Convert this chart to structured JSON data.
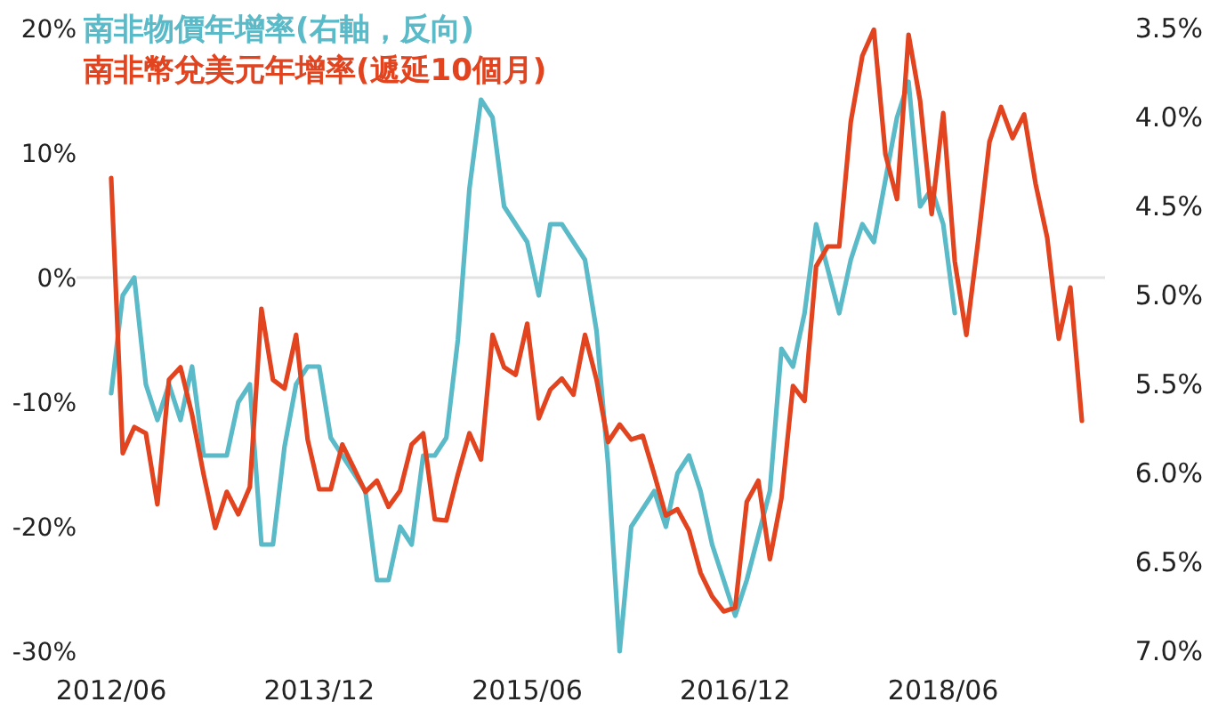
{
  "chart_data": {
    "type": "line",
    "xlim": [
      "2012-03",
      "2019-08"
    ],
    "xticks": [
      {
        "value": "2012-06",
        "label": "2012/06"
      },
      {
        "value": "2013-12",
        "label": "2013/12"
      },
      {
        "value": "2015-06",
        "label": "2015/06"
      },
      {
        "value": "2016-12",
        "label": "2016/12"
      },
      {
        "value": "2018-06",
        "label": "2018/06"
      }
    ],
    "ylim": [
      -30,
      20
    ],
    "yticks": [
      {
        "value": -30,
        "label": "-30%"
      },
      {
        "value": -20,
        "label": "-20%"
      },
      {
        "value": -10,
        "label": "-10%"
      },
      {
        "value": 0,
        "label": "0%"
      },
      {
        "value": 10,
        "label": "10%"
      },
      {
        "value": 20,
        "label": "20%"
      }
    ],
    "y2lim": [
      7.0,
      3.5
    ],
    "y2ticks": [
      {
        "value": 3.5,
        "label": "3.5%"
      },
      {
        "value": 4.0,
        "label": "4.0%"
      },
      {
        "value": 4.5,
        "label": "4.5%"
      },
      {
        "value": 5.0,
        "label": "5.0%"
      },
      {
        "value": 5.5,
        "label": "5.5%"
      },
      {
        "value": 6.0,
        "label": "6.0%"
      },
      {
        "value": 6.5,
        "label": "6.5%"
      },
      {
        "value": 7.0,
        "label": "7.0%"
      }
    ],
    "ref_lines": [
      {
        "axis": "y",
        "value": 0,
        "color": "#e3e3e3"
      }
    ],
    "grid": false,
    "x": [
      "2012-06",
      "2012-07",
      "2012-08",
      "2012-09",
      "2012-10",
      "2012-11",
      "2012-12",
      "2013-01",
      "2013-02",
      "2013-03",
      "2013-04",
      "2013-05",
      "2013-06",
      "2013-07",
      "2013-08",
      "2013-09",
      "2013-10",
      "2013-11",
      "2013-12",
      "2014-01",
      "2014-02",
      "2014-03",
      "2014-04",
      "2014-05",
      "2014-06",
      "2014-07",
      "2014-08",
      "2014-09",
      "2014-10",
      "2014-11",
      "2014-12",
      "2015-01",
      "2015-02",
      "2015-03",
      "2015-04",
      "2015-05",
      "2015-06",
      "2015-07",
      "2015-08",
      "2015-09",
      "2015-10",
      "2015-11",
      "2015-12",
      "2016-01",
      "2016-02",
      "2016-03",
      "2016-04",
      "2016-05",
      "2016-06",
      "2016-07",
      "2016-08",
      "2016-09",
      "2016-10",
      "2016-11",
      "2016-12",
      "2017-01",
      "2017-02",
      "2017-03",
      "2017-04",
      "2017-05",
      "2017-06",
      "2017-07",
      "2017-08",
      "2017-09",
      "2017-10",
      "2017-11",
      "2017-12",
      "2018-01",
      "2018-02",
      "2018-03",
      "2018-04",
      "2018-05",
      "2018-06",
      "2018-07",
      "2018-08",
      "2018-09",
      "2018-10",
      "2018-11",
      "2018-12",
      "2019-01",
      "2019-02",
      "2019-03",
      "2019-04",
      "2019-05",
      "2019-06"
    ],
    "line_style": "solid",
    "marker": "none",
    "series": [
      {
        "name": "南非物價年增率(右軸，反向)",
        "color": "#5bbac8",
        "axis": "y2",
        "values": [
          5.55,
          5.0,
          4.9,
          5.5,
          5.7,
          5.5,
          5.7,
          5.4,
          5.9,
          5.9,
          5.9,
          5.6,
          5.5,
          6.4,
          6.4,
          5.85,
          5.5,
          5.4,
          5.4,
          5.8,
          5.9,
          6.0,
          6.1,
          6.6,
          6.6,
          6.3,
          6.4,
          5.9,
          5.9,
          5.8,
          5.25,
          4.4,
          3.9,
          4.0,
          4.5,
          4.6,
          4.7,
          5.0,
          4.6,
          4.6,
          4.7,
          4.8,
          5.2,
          5.95,
          7.0,
          6.3,
          6.2,
          6.1,
          6.3,
          6.0,
          5.9,
          6.1,
          6.4,
          6.6,
          6.8,
          6.6,
          6.35,
          6.1,
          5.3,
          5.4,
          5.1,
          4.6,
          4.85,
          5.1,
          4.8,
          4.6,
          4.7,
          4.35,
          4.0,
          3.8,
          4.5,
          4.4,
          4.6,
          5.1,
          null,
          null,
          null,
          null,
          null,
          null,
          null,
          null,
          null,
          null,
          null
        ]
      },
      {
        "name": "南非幣兌美元年增率(遞延10個月)",
        "color": "#e2441f",
        "axis": "y",
        "values": [
          8.0,
          -14.1,
          -12.0,
          -12.5,
          -18.2,
          -8.2,
          -7.2,
          -11.0,
          -15.8,
          -20.1,
          -17.2,
          -19.0,
          -16.8,
          -2.5,
          -8.2,
          -8.9,
          -4.6,
          -13.0,
          -17.0,
          -17.0,
          -13.4,
          -15.3,
          -17.2,
          -16.3,
          -18.4,
          -17.1,
          -13.4,
          -12.5,
          -19.4,
          -19.5,
          -15.8,
          -12.5,
          -14.6,
          -4.6,
          -7.2,
          -7.8,
          -3.7,
          -11.3,
          -9.0,
          -8.1,
          -9.4,
          -4.6,
          -8.2,
          -13.2,
          -11.8,
          -13.0,
          -12.7,
          -15.8,
          -19.1,
          -18.6,
          -20.3,
          -23.7,
          -25.6,
          -26.8,
          -26.5,
          -18.0,
          -16.3,
          -22.6,
          -17.7,
          -8.7,
          -9.9,
          0.9,
          2.5,
          2.5,
          12.5,
          17.8,
          19.9,
          9.9,
          6.3,
          19.5,
          14.2,
          5.1,
          13.2,
          1.3,
          -4.6,
          2.8,
          10.9,
          13.7,
          11.2,
          13.1,
          7.5,
          3.2,
          -4.9,
          -0.8,
          -11.5
        ]
      }
    ]
  }
}
